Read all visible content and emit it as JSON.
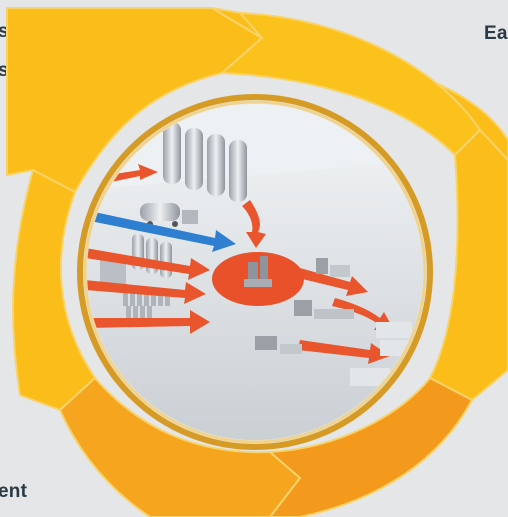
{
  "labels": {
    "top_left_line1": "s",
    "top_left_line2": "s",
    "top_right": "Ea",
    "bottom_left": "ent"
  },
  "colors": {
    "background": "#e4e6e7",
    "ring_yellow": "#fbbd1a",
    "ring_orange": "#f39a1c",
    "ring_border": "#d99a22",
    "center_disc": "#e8512a",
    "flow_arrow": "#e9562d",
    "flow_arrow_blue": "#2f7fd1",
    "silo": "#c7cbcf"
  }
}
